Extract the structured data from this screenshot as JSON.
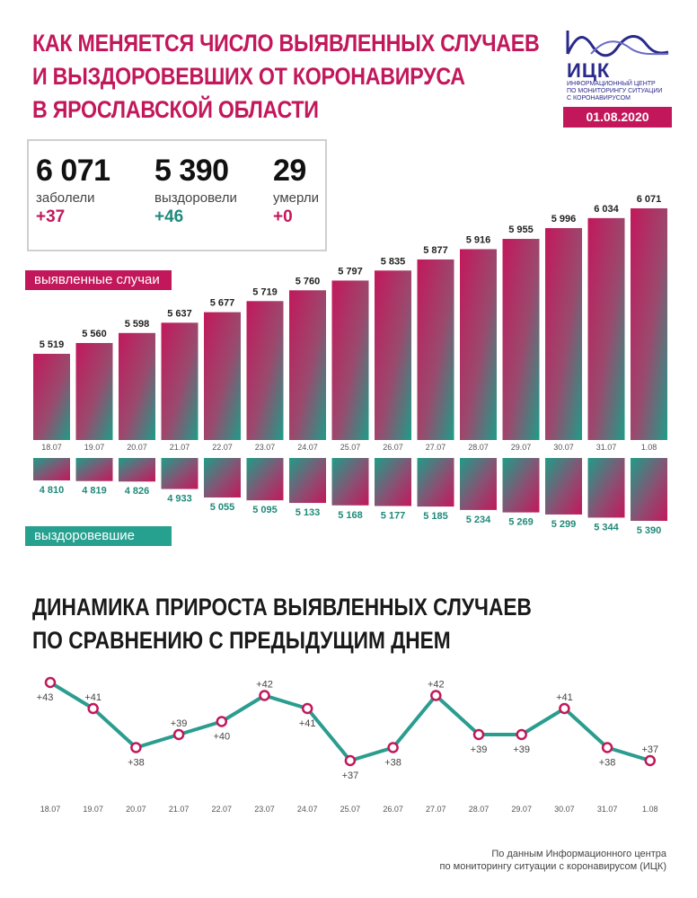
{
  "header": {
    "title_lines": [
      "КАК МЕНЯЕТСЯ ЧИСЛО ВЫЯВЛЕННЫХ СЛУЧАЕВ",
      "И ВЫЗДОРОВЕВШИХ ОТ КОРОНАВИРУСА",
      "В ЯРОСЛАВСКОЙ ОБЛАСТИ"
    ],
    "logo_abbr": "ИЦК",
    "logo_sub_lines": [
      "ИНФОРМАЦИОННЫЙ ЦЕНТР",
      "ПО МОНИТОРИНГУ СИТУАЦИИ",
      "С КОРОНАВИРУСОМ"
    ],
    "date": "01.08.2020"
  },
  "stats": [
    {
      "value": "6 071",
      "label": "заболели",
      "delta": "+37",
      "color": "#c2185b"
    },
    {
      "value": "5 390",
      "label": "выздоровели",
      "delta": "+46",
      "color": "#1f8a7a"
    },
    {
      "value": "29",
      "label": "умерли",
      "delta": "+0",
      "color": "#c2185b"
    }
  ],
  "legend": {
    "cases": "выявленные случаи",
    "recovered": "выздоровевшие"
  },
  "subtitle_lines": [
    "ДИНАМИКА ПРИРОСТА ВЫЯВЛЕННЫХ СЛУЧАЕВ",
    "ПО СРАВНЕНИЮ С ПРЕДЫДУЩИМ ДНЕМ"
  ],
  "footer_lines": [
    "По данным Информационного центра",
    "по мониторингу ситуации с коронавирусом (ИЦК)"
  ],
  "colors": {
    "accent": "#c2185b",
    "teal": "#26a08f",
    "line": "#2a9d8f"
  },
  "chart_data": [
    {
      "type": "bar",
      "categories": [
        "18.07",
        "19.07",
        "20.07",
        "21.07",
        "22.07",
        "23.07",
        "24.07",
        "25.07",
        "26.07",
        "27.07",
        "28.07",
        "29.07",
        "30.07",
        "31.07",
        "1.08"
      ],
      "series": [
        {
          "name": "выявленные случаи",
          "values": [
            5519,
            5560,
            5598,
            5637,
            5677,
            5719,
            5760,
            5797,
            5835,
            5877,
            5916,
            5955,
            5996,
            6034,
            6071
          ]
        },
        {
          "name": "выздоровевшие",
          "values": [
            4810,
            4819,
            4826,
            4933,
            5055,
            5095,
            5133,
            5168,
            5177,
            5185,
            5234,
            5269,
            5299,
            5344,
            5390
          ]
        }
      ],
      "value_labels": {
        "cases": [
          "5 519",
          "5 560",
          "5 598",
          "5 637",
          "5 677",
          "5 719",
          "5 760",
          "5 797",
          "5 835",
          "5 877",
          "5 916",
          "5 955",
          "5 996",
          "6 034",
          "6 071"
        ],
        "recovered": [
          "4 810",
          "4 819",
          "4 826",
          "4 933",
          "5 055",
          "5 095",
          "5 133",
          "5 168",
          "5 177",
          "5 185",
          "5 234",
          "5 269",
          "5 299",
          "5 344",
          "5 390"
        ]
      }
    },
    {
      "type": "line",
      "categories": [
        "18.07",
        "19.07",
        "20.07",
        "21.07",
        "22.07",
        "23.07",
        "24.07",
        "25.07",
        "26.07",
        "27.07",
        "28.07",
        "29.07",
        "30.07",
        "31.07",
        "1.08"
      ],
      "series": [
        {
          "values": [
            43,
            41,
            38,
            39,
            40,
            42,
            41,
            37,
            38,
            42,
            39,
            39,
            41,
            38,
            37
          ]
        }
      ],
      "labels": [
        "+43",
        "+41",
        "+38",
        "+39",
        "+40",
        "+42",
        "+41",
        "+37",
        "+38",
        "+42",
        "+39",
        "+39",
        "+41",
        "+38",
        "+37"
      ],
      "label_pos": [
        "below",
        "above",
        "below",
        "above",
        "below",
        "above",
        "below",
        "below",
        "below",
        "above",
        "below",
        "below",
        "above",
        "below",
        "above"
      ]
    }
  ]
}
